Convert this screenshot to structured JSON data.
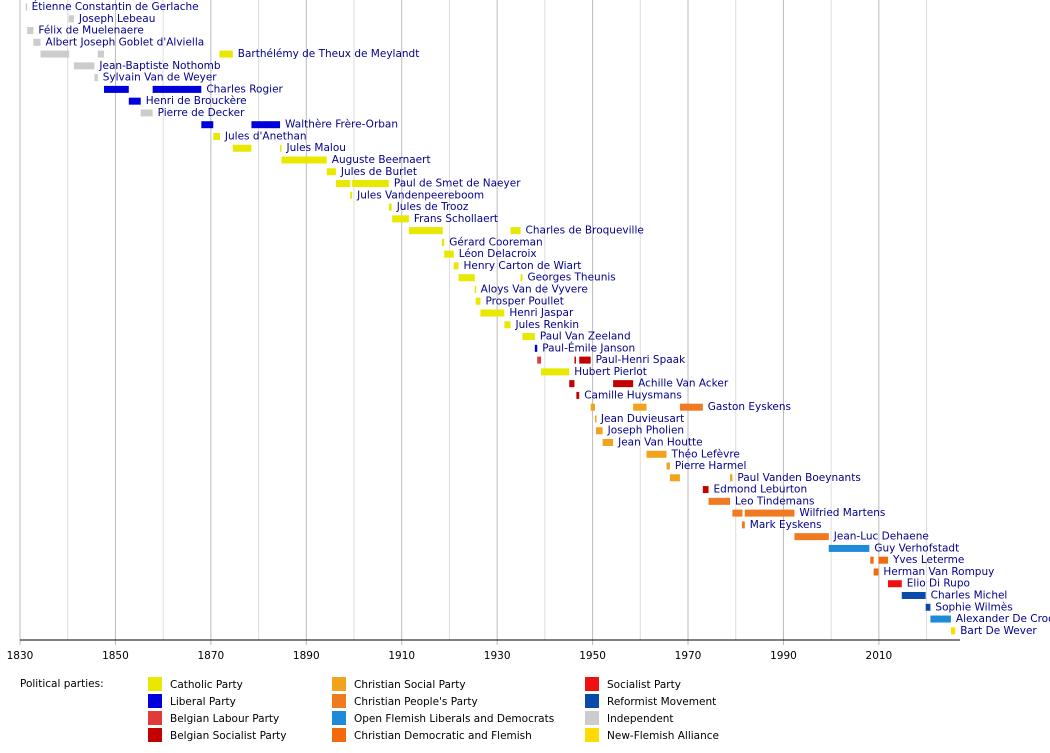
{
  "chart_data": {
    "type": "timeline",
    "xlim": [
      1830,
      2027
    ],
    "xticks": [
      1830,
      1850,
      1870,
      1890,
      1910,
      1930,
      1950,
      1970,
      1990,
      2010
    ],
    "xminorticks": [
      1840,
      1860,
      1880,
      1900,
      1920,
      1940,
      1960,
      1980,
      2000,
      2020
    ],
    "grid": true,
    "legend": {
      "title": "Political parties:",
      "items": [
        {
          "name": "Catholic Party",
          "color": "#e8e800"
        },
        {
          "name": "Liberal Party",
          "color": "#0000dd"
        },
        {
          "name": "Belgian Labour Party",
          "color": "#e03a3a"
        },
        {
          "name": "Belgian Socialist Party",
          "color": "#c40000"
        },
        {
          "name": "Christian Social Party",
          "color": "#f2a31c"
        },
        {
          "name": "Christian People's Party",
          "color": "#f07a22"
        },
        {
          "name": "Open Flemish Liberals and Democrats",
          "color": "#1e8ad8"
        },
        {
          "name": "Christian Democratic and Flemish",
          "color": "#f26a0c"
        },
        {
          "name": "Socialist Party",
          "color": "#f01010"
        },
        {
          "name": "Reformist Movement",
          "color": "#0a4aa8"
        },
        {
          "name": "Independent",
          "color": "#cccccc"
        },
        {
          "name": "New-Flemish Alliance",
          "color": "#ffdc00"
        }
      ]
    },
    "rows": [
      {
        "name": "Étienne Constantin de Gerlache",
        "terms": [
          {
            "start": 1831.2,
            "end": 1831.4,
            "party": "Independent"
          }
        ]
      },
      {
        "name": "Joseph Lebeau",
        "terms": [
          {
            "start": 1840.2,
            "end": 1841.3,
            "party": "Independent"
          }
        ]
      },
      {
        "name": "Félix de Muelenaere",
        "terms": [
          {
            "start": 1831.5,
            "end": 1832.8,
            "party": "Independent"
          }
        ]
      },
      {
        "name": "Albert Joseph Goblet d'Alviella",
        "terms": [
          {
            "start": 1832.8,
            "end": 1834.3,
            "party": "Independent"
          }
        ]
      },
      {
        "name": "Barthélémy de Theux de Meylandt",
        "terms": [
          {
            "start": 1834.3,
            "end": 1840.3,
            "party": "Independent"
          },
          {
            "start": 1846.3,
            "end": 1847.6,
            "party": "Independent"
          },
          {
            "start": 1871.8,
            "end": 1874.6,
            "party": "Catholic Party"
          }
        ]
      },
      {
        "name": "Jean-Baptiste Nothomb",
        "terms": [
          {
            "start": 1841.3,
            "end": 1845.6,
            "party": "Independent"
          }
        ]
      },
      {
        "name": "Sylvain Van de Weyer",
        "terms": [
          {
            "start": 1845.6,
            "end": 1846.3,
            "party": "Independent"
          }
        ]
      },
      {
        "name": "Charles Rogier",
        "terms": [
          {
            "start": 1847.6,
            "end": 1852.8,
            "party": "Liberal Party"
          },
          {
            "start": 1857.8,
            "end": 1868.0,
            "party": "Liberal Party"
          }
        ]
      },
      {
        "name": "Henri de Brouckère",
        "terms": [
          {
            "start": 1852.8,
            "end": 1855.3,
            "party": "Liberal Party"
          }
        ]
      },
      {
        "name": "Pierre de Decker",
        "terms": [
          {
            "start": 1855.3,
            "end": 1857.8,
            "party": "Independent"
          }
        ]
      },
      {
        "name": "Walthère Frère-Orban",
        "terms": [
          {
            "start": 1868.0,
            "end": 1870.5,
            "party": "Liberal Party"
          },
          {
            "start": 1878.5,
            "end": 1884.5,
            "party": "Liberal Party"
          }
        ]
      },
      {
        "name": "Jules d'Anethan",
        "terms": [
          {
            "start": 1870.5,
            "end": 1871.9,
            "party": "Catholic Party"
          }
        ]
      },
      {
        "name": "Jules Malou",
        "terms": [
          {
            "start": 1874.6,
            "end": 1878.5,
            "party": "Catholic Party"
          },
          {
            "start": 1884.5,
            "end": 1884.8,
            "party": "Catholic Party"
          }
        ]
      },
      {
        "name": "Auguste Beernaert",
        "terms": [
          {
            "start": 1884.8,
            "end": 1894.3,
            "party": "Catholic Party"
          }
        ]
      },
      {
        "name": "Jules de Burlet",
        "terms": [
          {
            "start": 1894.3,
            "end": 1896.2,
            "party": "Catholic Party"
          }
        ]
      },
      {
        "name": "Paul de Smet de Naeyer",
        "terms": [
          {
            "start": 1896.2,
            "end": 1899.2,
            "party": "Catholic Party"
          },
          {
            "start": 1899.6,
            "end": 1907.3,
            "party": "Catholic Party"
          }
        ]
      },
      {
        "name": "Jules Vandenpeereboom",
        "terms": [
          {
            "start": 1899.2,
            "end": 1899.6,
            "party": "Catholic Party"
          }
        ]
      },
      {
        "name": "Jules de Trooz",
        "terms": [
          {
            "start": 1907.3,
            "end": 1907.9,
            "party": "Catholic Party"
          }
        ]
      },
      {
        "name": "Frans Schollaert",
        "terms": [
          {
            "start": 1908.0,
            "end": 1911.5,
            "party": "Catholic Party"
          }
        ]
      },
      {
        "name": "Charles de Broqueville",
        "terms": [
          {
            "start": 1911.5,
            "end": 1918.6,
            "party": "Catholic Party"
          },
          {
            "start": 1932.8,
            "end": 1934.9,
            "party": "Catholic Party"
          }
        ]
      },
      {
        "name": "Gérard Cooreman",
        "terms": [
          {
            "start": 1918.4,
            "end": 1918.9,
            "party": "Catholic Party"
          }
        ]
      },
      {
        "name": "Léon Delacroix",
        "terms": [
          {
            "start": 1918.9,
            "end": 1920.9,
            "party": "Catholic Party"
          }
        ]
      },
      {
        "name": "Henry Carton de Wiart",
        "terms": [
          {
            "start": 1920.9,
            "end": 1921.9,
            "party": "Catholic Party"
          }
        ]
      },
      {
        "name": "Georges Theunis",
        "terms": [
          {
            "start": 1921.9,
            "end": 1925.3,
            "party": "Catholic Party"
          },
          {
            "start": 1934.9,
            "end": 1935.3,
            "party": "Catholic Party"
          }
        ]
      },
      {
        "name": "Aloys Van de Vyvere",
        "terms": [
          {
            "start": 1925.3,
            "end": 1925.5,
            "party": "Catholic Party"
          }
        ]
      },
      {
        "name": "Prosper Poullet",
        "terms": [
          {
            "start": 1925.5,
            "end": 1926.5,
            "party": "Catholic Party"
          }
        ]
      },
      {
        "name": "Henri Jaspar",
        "terms": [
          {
            "start": 1926.5,
            "end": 1931.5,
            "party": "Catholic Party"
          }
        ]
      },
      {
        "name": "Jules Renkin",
        "terms": [
          {
            "start": 1931.5,
            "end": 1932.8,
            "party": "Catholic Party"
          }
        ]
      },
      {
        "name": "Paul Van Zeeland",
        "terms": [
          {
            "start": 1935.3,
            "end": 1937.9,
            "party": "Catholic Party"
          }
        ]
      },
      {
        "name": "Paul-Émile Janson",
        "terms": [
          {
            "start": 1937.9,
            "end": 1938.4,
            "party": "Liberal Party"
          }
        ]
      },
      {
        "name": "Paul-Henri Spaak",
        "terms": [
          {
            "start": 1938.4,
            "end": 1939.2,
            "party": "Belgian Labour Party"
          },
          {
            "start": 1946.2,
            "end": 1946.3,
            "party": "Belgian Socialist Party"
          },
          {
            "start": 1947.2,
            "end": 1949.6,
            "party": "Belgian Socialist Party"
          }
        ]
      },
      {
        "name": "Hubert Pierlot",
        "terms": [
          {
            "start": 1939.2,
            "end": 1945.1,
            "party": "Catholic Party"
          }
        ]
      },
      {
        "name": "Achille Van Acker",
        "terms": [
          {
            "start": 1945.1,
            "end": 1946.2,
            "party": "Belgian Socialist Party"
          },
          {
            "start": 1954.3,
            "end": 1958.5,
            "party": "Belgian Socialist Party"
          }
        ]
      },
      {
        "name": "Camille Huysmans",
        "terms": [
          {
            "start": 1946.6,
            "end": 1947.2,
            "party": "Belgian Socialist Party"
          }
        ]
      },
      {
        "name": "Gaston Eyskens",
        "terms": [
          {
            "start": 1949.6,
            "end": 1950.5,
            "party": "Christian Social Party"
          },
          {
            "start": 1958.5,
            "end": 1961.3,
            "party": "Christian Social Party"
          },
          {
            "start": 1968.3,
            "end": 1973.1,
            "party": "Christian People's Party"
          }
        ]
      },
      {
        "name": "Jean Duvieusart",
        "terms": [
          {
            "start": 1950.5,
            "end": 1950.7,
            "party": "Christian Social Party"
          }
        ]
      },
      {
        "name": "Joseph Pholien",
        "terms": [
          {
            "start": 1950.7,
            "end": 1952.1,
            "party": "Christian Social Party"
          }
        ]
      },
      {
        "name": "Jean Van Houtte",
        "terms": [
          {
            "start": 1952.1,
            "end": 1954.3,
            "party": "Christian Social Party"
          }
        ]
      },
      {
        "name": "Théo Lefèvre",
        "terms": [
          {
            "start": 1961.3,
            "end": 1965.5,
            "party": "Christian Social Party"
          }
        ]
      },
      {
        "name": "Pierre Harmel",
        "terms": [
          {
            "start": 1965.5,
            "end": 1966.2,
            "party": "Christian Social Party"
          }
        ]
      },
      {
        "name": "Paul Vanden Boeynants",
        "terms": [
          {
            "start": 1966.2,
            "end": 1968.3,
            "party": "Christian Social Party"
          },
          {
            "start": 1978.8,
            "end": 1979.3,
            "party": "Christian Social Party"
          }
        ]
      },
      {
        "name": "Edmond Leburton",
        "terms": [
          {
            "start": 1973.1,
            "end": 1974.3,
            "party": "Belgian Socialist Party"
          }
        ]
      },
      {
        "name": "Leo Tindemans",
        "terms": [
          {
            "start": 1974.3,
            "end": 1978.8,
            "party": "Christian People's Party"
          }
        ]
      },
      {
        "name": "Wilfried Martens",
        "terms": [
          {
            "start": 1979.3,
            "end": 1981.4,
            "party": "Christian People's Party"
          },
          {
            "start": 1981.9,
            "end": 1992.3,
            "party": "Christian People's Party"
          }
        ]
      },
      {
        "name": "Mark Eyskens",
        "terms": [
          {
            "start": 1981.3,
            "end": 1981.9,
            "party": "Christian People's Party"
          }
        ]
      },
      {
        "name": "Jean-Luc Dehaene",
        "terms": [
          {
            "start": 1992.3,
            "end": 1999.5,
            "party": "Christian People's Party"
          }
        ]
      },
      {
        "name": "Guy Verhofstadt",
        "terms": [
          {
            "start": 1999.5,
            "end": 2008.0,
            "party": "Open Flemish Liberals and Democrats"
          }
        ]
      },
      {
        "name": "Yves Leterme",
        "terms": [
          {
            "start": 2008.2,
            "end": 2008.9,
            "party": "Christian Democratic and Flemish"
          },
          {
            "start": 2009.9,
            "end": 2011.9,
            "party": "Christian Democratic and Flemish"
          }
        ]
      },
      {
        "name": "Herman Van Rompuy",
        "terms": [
          {
            "start": 2008.9,
            "end": 2009.9,
            "party": "Christian Democratic and Flemish"
          }
        ]
      },
      {
        "name": "Elio Di Rupo",
        "terms": [
          {
            "start": 2011.9,
            "end": 2014.8,
            "party": "Socialist Party"
          }
        ]
      },
      {
        "name": "Charles Michel",
        "terms": [
          {
            "start": 2014.8,
            "end": 2019.8,
            "party": "Reformist Movement"
          }
        ]
      },
      {
        "name": "Sophie Wilmès",
        "terms": [
          {
            "start": 2019.8,
            "end": 2020.8,
            "party": "Reformist Movement"
          }
        ]
      },
      {
        "name": "Alexander De Croo",
        "terms": [
          {
            "start": 2020.8,
            "end": 2025.1,
            "party": "Open Flemish Liberals and Democrats"
          }
        ]
      },
      {
        "name": "Bart De Wever",
        "terms": [
          {
            "start": 2025.1,
            "end": 2026.0,
            "party": "New-Flemish Alliance"
          }
        ]
      }
    ]
  }
}
